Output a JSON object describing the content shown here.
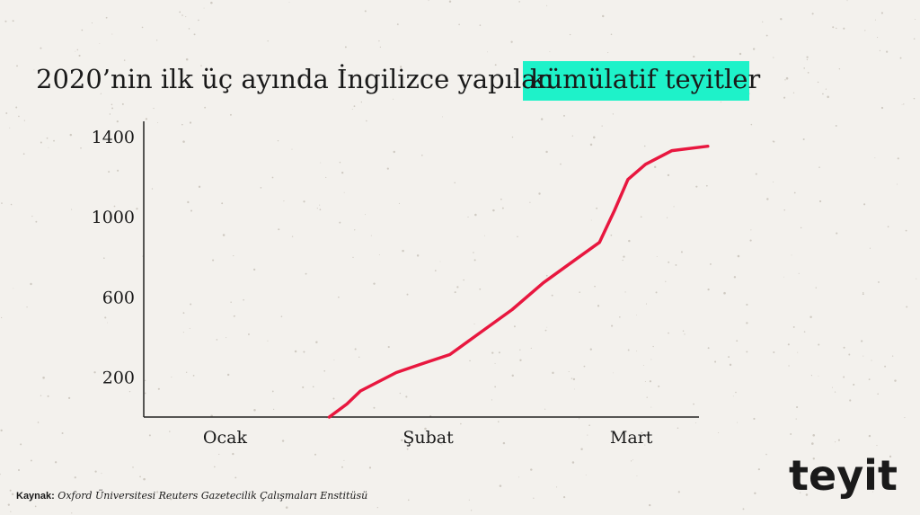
{
  "chart_data": {
    "type": "line",
    "title": "2020’nin ilk üç ayında İngilizce yapılan",
    "title_highlight": "kümülatif teyitler",
    "x": [
      31.4,
      34,
      36,
      41.3,
      45.2,
      49.2,
      53.8,
      58.4,
      63,
      67.6,
      71.3,
      73.5,
      75.5,
      78.1,
      82,
      87.3
    ],
    "series": [
      {
        "name": "kümülatif teyitler",
        "color": "#e8173f",
        "values": [
          0,
          65,
          130,
          222,
          267,
          312,
          424,
          536,
          670,
          782,
          872,
          1030,
          1186,
          1262,
          1330,
          1352
        ]
      }
    ],
    "xlim": [
      4,
      86
    ],
    "xticks": [
      {
        "value": 16,
        "label": "Ocak"
      },
      {
        "value": 46,
        "label": "Şubat"
      },
      {
        "value": 76,
        "label": "Mart"
      }
    ],
    "ylim": [
      0,
      1480
    ],
    "yticks": [
      200,
      600,
      1000,
      1400
    ],
    "highlight_color": "#1ef2c9",
    "source_label": "Kaynak:",
    "source": "Oxford Üniversitesi Reuters Gazetecilik Çalışmaları Enstitüsü",
    "logo": "teyit"
  }
}
